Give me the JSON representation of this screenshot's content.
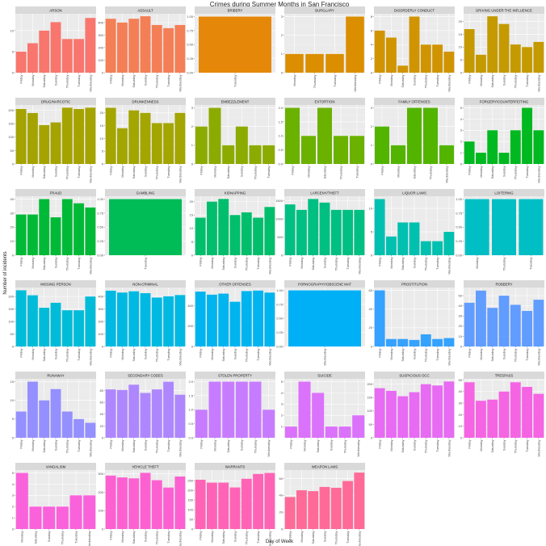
{
  "chart_data": {
    "type": "bar",
    "title": "Crimes during Summer Months in San Francisco",
    "xlabel": "Day of Week",
    "ylabel": "Number of incidents",
    "grid": true,
    "facets": [
      {
        "name": "ARSON",
        "color": "#F8766D",
        "categories": [
          "Friday",
          "Monday",
          "Saturday",
          "Sunday",
          "Thursday",
          "Tuesday",
          "Wednesday"
        ],
        "values": [
          5,
          7,
          10,
          12,
          8,
          8,
          13
        ],
        "yticks": [
          0,
          5,
          10
        ],
        "ylim": [
          0,
          14
        ]
      },
      {
        "name": "ASSAULT",
        "color": "#F47F57",
        "categories": [
          "Friday",
          "Monday",
          "Saturday",
          "Sunday",
          "Thursday",
          "Tuesday",
          "Wednesday"
        ],
        "values": [
          430,
          400,
          430,
          450,
          380,
          355,
          380
        ],
        "yticks": [
          0,
          100,
          200,
          300,
          400
        ],
        "ylim": [
          0,
          470
        ]
      },
      {
        "name": "BRIBERY",
        "color": "#E5880A",
        "categories": [
          "Tuesday"
        ],
        "values": [
          1
        ],
        "yticks": [
          0.0,
          0.25,
          0.5,
          0.75,
          1.0
        ],
        "ylim": [
          0,
          1.05
        ]
      },
      {
        "name": "BURGLARY",
        "color": "#DB8E00",
        "categories": [
          "Monday",
          "Thursday",
          "Tuesday",
          "Wednesday"
        ],
        "values": [
          1,
          1,
          1,
          3
        ],
        "yticks": [
          0,
          1,
          2,
          3
        ],
        "ylim": [
          0,
          3.15
        ]
      },
      {
        "name": "DISORDERLY CONDUCT",
        "color": "#D09400",
        "categories": [
          "Friday",
          "Monday",
          "Saturday",
          "Sunday",
          "Thursday",
          "Tuesday",
          "Wednesday"
        ],
        "values": [
          6,
          5,
          1,
          8,
          4,
          4,
          3
        ],
        "yticks": [
          0,
          2,
          4,
          6,
          8
        ],
        "ylim": [
          0,
          8.4
        ]
      },
      {
        "name": "DRIVING UNDER THE INFLUENCE",
        "color": "#C49A00",
        "categories": [
          "Friday",
          "Monday",
          "Saturday",
          "Sunday",
          "Thursday",
          "Tuesday",
          "Wednesday"
        ],
        "values": [
          17,
          7,
          22,
          19,
          11,
          10,
          12
        ],
        "yticks": [
          0,
          5,
          10,
          15,
          20
        ],
        "ylim": [
          0,
          23
        ]
      },
      {
        "name": "DRUG/NARCOTIC",
        "color": "#A5A300",
        "categories": [
          "Friday",
          "Monday",
          "Saturday",
          "Sunday",
          "Thursday",
          "Tuesday",
          "Wednesday"
        ],
        "values": [
          205,
          190,
          145,
          155,
          210,
          205,
          210
        ],
        "yticks": [
          0,
          50,
          100,
          150,
          200
        ],
        "ylim": [
          0,
          220
        ]
      },
      {
        "name": "DRUNKENNESS",
        "color": "#A3A500",
        "categories": [
          "Friday",
          "Monday",
          "Saturday",
          "Sunday",
          "Thursday",
          "Tuesday",
          "Wednesday"
        ],
        "values": [
          22,
          14,
          21,
          20,
          16,
          16,
          20
        ],
        "yticks": [
          0,
          5,
          10,
          15,
          20
        ],
        "ylim": [
          0,
          23.1
        ]
      },
      {
        "name": "EMBEZZLEMENT",
        "color": "#8CAB00",
        "categories": [
          "Friday",
          "Monday",
          "Saturday",
          "Sunday",
          "Thursday",
          "Tuesday"
        ],
        "values": [
          2,
          3,
          1,
          2,
          1,
          1
        ],
        "yticks": [
          0,
          1,
          2,
          3
        ],
        "ylim": [
          0,
          3.15
        ]
      },
      {
        "name": "EXTORTION",
        "color": "#6BB100",
        "categories": [
          "Friday",
          "Monday",
          "Saturday",
          "Thursday",
          "Tuesday"
        ],
        "values": [
          2,
          1,
          2,
          1,
          1
        ],
        "yticks": [
          0.0,
          0.5,
          1.0,
          1.5,
          2.0
        ],
        "ylim": [
          0,
          2.1
        ]
      },
      {
        "name": "FAMILY OFFENSES",
        "color": "#53B400",
        "categories": [
          "Friday",
          "Monday",
          "Saturday",
          "Thursday",
          "Wednesday"
        ],
        "values": [
          2,
          1,
          3,
          3,
          1
        ],
        "yticks": [
          0,
          1,
          2,
          3
        ],
        "ylim": [
          0,
          3.15
        ]
      },
      {
        "name": "FORGERY/COUNTERFEITING",
        "color": "#00B81F",
        "categories": [
          "Friday",
          "Monday",
          "Saturday",
          "Sunday",
          "Thursday",
          "Tuesday",
          "Wednesday"
        ],
        "values": [
          2,
          1,
          3,
          1,
          3,
          5,
          3
        ],
        "yticks": [
          0,
          1,
          2,
          3,
          4,
          5
        ],
        "ylim": [
          0,
          5.25
        ]
      },
      {
        "name": "FRAUD",
        "color": "#00B937",
        "categories": [
          "Friday",
          "Monday",
          "Saturday",
          "Sunday",
          "Thursday",
          "Tuesday",
          "Wednesday"
        ],
        "values": [
          29,
          29,
          40,
          27,
          40,
          37,
          34
        ],
        "yticks": [
          0,
          10,
          20,
          30,
          40
        ],
        "ylim": [
          0,
          42
        ]
      },
      {
        "name": "GAMBLING",
        "color": "#00BC56",
        "categories": [
          "Tuesday"
        ],
        "values": [
          1
        ],
        "yticks": [
          0.0,
          0.25,
          0.5,
          0.75,
          1.0
        ],
        "ylim": [
          0,
          1.05
        ]
      },
      {
        "name": "KIDNAPPING",
        "color": "#00BE6C",
        "categories": [
          "Friday",
          "Monday",
          "Saturday",
          "Sunday",
          "Thursday",
          "Tuesday",
          "Wednesday"
        ],
        "values": [
          14,
          20,
          21,
          15,
          16,
          14,
          18
        ],
        "yticks": [
          0,
          5,
          10,
          15,
          20
        ],
        "ylim": [
          0,
          22
        ]
      },
      {
        "name": "LARCENY/THEFT",
        "color": "#00BF82",
        "categories": [
          "Friday",
          "Monday",
          "Saturday",
          "Sunday",
          "Thursday",
          "Tuesday",
          "Wednesday"
        ],
        "values": [
          1400,
          1250,
          1550,
          1450,
          1250,
          1250,
          1250
        ],
        "yticks": [
          0,
          500,
          1000,
          1500
        ],
        "ylim": [
          0,
          1625
        ]
      },
      {
        "name": "LIQUOR LAWS",
        "color": "#00C0AF",
        "categories": [
          "Friday",
          "Monday",
          "Saturday",
          "Sunday",
          "Thursday",
          "Tuesday",
          "Wednesday"
        ],
        "values": [
          12,
          4,
          7,
          7,
          3,
          3,
          5
        ],
        "yticks": [
          0,
          5,
          10
        ],
        "ylim": [
          0,
          12.6
        ]
      },
      {
        "name": "LOITERING",
        "color": "#00BFC4",
        "categories": [
          "Monday",
          "Thursday",
          "Tuesday"
        ],
        "values": [
          1,
          1,
          1
        ],
        "yticks": [
          0.0,
          0.25,
          0.5,
          0.75,
          1.0
        ],
        "ylim": [
          0,
          1.05
        ]
      },
      {
        "name": "MISSING PERSON",
        "color": "#00BCD8",
        "categories": [
          "Friday",
          "Monday",
          "Saturday",
          "Sunday",
          "Thursday",
          "Tuesday",
          "Wednesday"
        ],
        "values": [
          225,
          205,
          155,
          175,
          145,
          145,
          200
        ],
        "yticks": [
          0,
          50,
          100,
          150,
          200
        ],
        "ylim": [
          0,
          236
        ]
      },
      {
        "name": "NON-CRIMINAL",
        "color": "#00B9E3",
        "categories": [
          "Friday",
          "Monday",
          "Saturday",
          "Sunday",
          "Thursday",
          "Tuesday",
          "Wednesday"
        ],
        "values": [
          445,
          430,
          440,
          425,
          390,
          400,
          410
        ],
        "yticks": [
          0,
          100,
          200,
          300,
          400
        ],
        "ylim": [
          0,
          470
        ]
      },
      {
        "name": "OTHER OFFENSES",
        "color": "#00B4F0",
        "categories": [
          "Friday",
          "Monday",
          "Saturday",
          "Sunday",
          "Thursday",
          "Tuesday",
          "Wednesday"
        ],
        "values": [
          540,
          510,
          520,
          440,
          545,
          550,
          530
        ],
        "yticks": [
          0,
          200,
          400
        ],
        "ylim": [
          0,
          580
        ]
      },
      {
        "name": "PORNOGRAPHY/OBSCENE MAT",
        "color": "#00B0F6",
        "categories": [
          "Wednesday"
        ],
        "values": [
          1
        ],
        "yticks": [
          0.0,
          0.25,
          0.5,
          0.75,
          1.0
        ],
        "ylim": [
          0,
          1.05
        ]
      },
      {
        "name": "PROSTITUTION",
        "color": "#35A2FF",
        "categories": [
          "Friday",
          "Monday",
          "Saturday",
          "Sunday",
          "Thursday",
          "Tuesday",
          "Wednesday"
        ],
        "values": [
          60,
          8,
          8,
          7,
          13,
          8,
          9
        ],
        "yticks": [
          0,
          20,
          40,
          60
        ],
        "ylim": [
          0,
          63
        ]
      },
      {
        "name": "ROBBERY",
        "color": "#619CFF",
        "categories": [
          "Friday",
          "Monday",
          "Saturday",
          "Sunday",
          "Thursday",
          "Tuesday",
          "Wednesday"
        ],
        "values": [
          43,
          55,
          38,
          50,
          41,
          35,
          46
        ],
        "yticks": [
          0,
          10,
          20,
          30,
          40,
          50
        ],
        "ylim": [
          0,
          58
        ]
      },
      {
        "name": "RUNAWAY",
        "color": "#9590FF",
        "categories": [
          "Friday",
          "Monday",
          "Saturday",
          "Sunday",
          "Thursday",
          "Tuesday",
          "Wednesday"
        ],
        "values": [
          7,
          15,
          10,
          13,
          7,
          5,
          4
        ],
        "yticks": [
          0,
          5,
          10,
          15
        ],
        "ylim": [
          0,
          15.75
        ]
      },
      {
        "name": "SECONDARY CODES",
        "color": "#AE87FF",
        "categories": [
          "Friday",
          "Monday",
          "Saturday",
          "Sunday",
          "Thursday",
          "Tuesday",
          "Wednesday"
        ],
        "values": [
          82,
          81,
          90,
          76,
          82,
          95,
          73
        ],
        "yticks": [
          0,
          20,
          40,
          60,
          80
        ],
        "ylim": [
          0,
          100
        ]
      },
      {
        "name": "STOLEN PROPERTY",
        "color": "#C77CFF",
        "categories": [
          "Friday",
          "Monday",
          "Saturday",
          "Sunday",
          "Thursday",
          "Wednesday"
        ],
        "values": [
          1,
          2,
          2,
          2,
          2,
          1
        ],
        "yticks": [
          0.0,
          0.5,
          1.0,
          1.5,
          2.0
        ],
        "ylim": [
          0,
          2.1
        ]
      },
      {
        "name": "SUICIDE",
        "color": "#DB72FB",
        "categories": [
          "Friday",
          "Monday",
          "Saturday",
          "Sunday",
          "Thursday",
          "Wednesday"
        ],
        "values": [
          1,
          5,
          4,
          1,
          1,
          2
        ],
        "yticks": [
          1,
          2,
          3,
          4,
          5
        ],
        "ylim": [
          0,
          5.25
        ]
      },
      {
        "name": "SUSPICIOUS OCC",
        "color": "#E76BF3",
        "categories": [
          "Friday",
          "Monday",
          "Saturday",
          "Sunday",
          "Thursday",
          "Tuesday",
          "Wednesday"
        ],
        "values": [
          185,
          175,
          155,
          170,
          200,
          195,
          210
        ],
        "yticks": [
          0,
          50,
          100,
          150,
          200
        ],
        "ylim": [
          0,
          220
        ]
      },
      {
        "name": "TRESPASS",
        "color": "#F564E3",
        "categories": [
          "Friday",
          "Monday",
          "Saturday",
          "Sunday",
          "Thursday",
          "Tuesday",
          "Wednesday"
        ],
        "values": [
          48,
          32,
          33,
          40,
          48,
          44,
          38
        ],
        "yticks": [
          0,
          10,
          20,
          30,
          40,
          50
        ],
        "ylim": [
          0,
          51
        ]
      },
      {
        "name": "VANDALISM",
        "color": "#FA62DB",
        "categories": [
          "Monday",
          "Saturday",
          "Sunday",
          "Thursday",
          "Tuesday",
          "Wednesday"
        ],
        "values": [
          5,
          2,
          2,
          2,
          3,
          3
        ],
        "yticks": [
          0,
          1,
          2,
          3,
          4,
          5
        ],
        "ylim": [
          0,
          5.25
        ]
      },
      {
        "name": "VEHICLE THEFT",
        "color": "#FD61D1",
        "categories": [
          "Friday",
          "Monday",
          "Saturday",
          "Sunday",
          "Thursday",
          "Tuesday",
          "Wednesday"
        ],
        "values": [
          290,
          280,
          275,
          305,
          265,
          225,
          285
        ],
        "yticks": [
          0,
          100,
          200,
          300
        ],
        "ylim": [
          0,
          320
        ]
      },
      {
        "name": "WARRANTS",
        "color": "#FF63B6",
        "categories": [
          "Friday",
          "Monday",
          "Saturday",
          "Sunday",
          "Thursday",
          "Tuesday",
          "Wednesday"
        ],
        "values": [
          255,
          240,
          240,
          215,
          260,
          285,
          290
        ],
        "yticks": [
          0,
          50,
          100,
          150,
          200,
          250
        ],
        "ylim": [
          0,
          305
        ]
      },
      {
        "name": "WEAPON LAWS",
        "color": "#FF6A98",
        "categories": [
          "Friday",
          "Monday",
          "Saturday",
          "Sunday",
          "Thursday",
          "Tuesday",
          "Wednesday"
        ],
        "values": [
          38,
          46,
          45,
          50,
          49,
          57,
          67
        ],
        "yticks": [
          0,
          20,
          40,
          60
        ],
        "ylim": [
          0,
          70
        ]
      }
    ]
  }
}
